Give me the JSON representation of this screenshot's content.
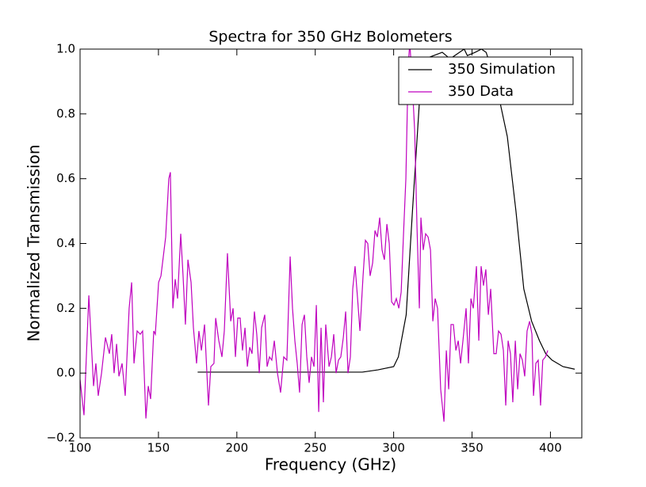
{
  "chart_data": {
    "type": "line",
    "title": "Spectra for 350 GHz Bolometers",
    "x_label": "Frequency (GHz)",
    "y_label": "Normalized Transmission",
    "xlim": [
      100,
      420
    ],
    "ylim": [
      -0.2,
      1.0
    ],
    "xticks": [
      100,
      150,
      200,
      250,
      300,
      350,
      400
    ],
    "yticks": [
      {
        "value": -0.2,
        "label": "−0.2"
      },
      {
        "value": 0,
        "label": "0.0"
      },
      0.2,
      0.4,
      0.6,
      0.8,
      {
        "value": 1.0,
        "label": "1.0"
      }
    ],
    "legend": "upper right",
    "grid": false,
    "series": [
      {
        "name": "350 Simulation",
        "color": "#000000",
        "x": [
          175,
          185,
          200,
          220,
          240,
          260,
          280,
          290,
          300,
          303,
          308,
          312,
          317,
          320,
          331,
          336,
          345,
          347,
          352,
          356,
          359,
          365,
          372.5,
          378,
          383,
          388,
          393,
          397,
          401,
          408,
          415.5
        ],
        "values": [
          0.003,
          0.003,
          0.003,
          0.003,
          0.003,
          0.003,
          0.003,
          0.01,
          0.02,
          0.05,
          0.18,
          0.5,
          0.88,
          0.97,
          0.99,
          0.97,
          1.0,
          0.98,
          0.99,
          1.0,
          0.99,
          0.9,
          0.73,
          0.5,
          0.26,
          0.16,
          0.1,
          0.06,
          0.04,
          0.02,
          0.012
        ]
      },
      {
        "name": "350 Data",
        "color": "#bf00bf",
        "x": [
          100.0,
          102.5,
          105.6,
          108.6,
          110.1,
          111.6,
          113.7,
          116.2,
          118.7,
          120.2,
          121.7,
          123.3,
          124.8,
          126.8,
          128.8,
          131.3,
          132.9,
          134.4,
          136.4,
          138.4,
          139.9,
          142.0,
          143.5,
          145.0,
          147.0,
          148.0,
          150.1,
          151.6,
          153.1,
          154.6,
          156.6,
          157.6,
          159.2,
          160.7,
          162.2,
          164.2,
          165.7,
          167.2,
          168.8,
          170.8,
          172.3,
          174.3,
          175.8,
          177.4,
          179.4,
          181.9,
          183.4,
          185.4,
          186.5,
          188.5,
          190.5,
          192.0,
          194.0,
          196.1,
          197.6,
          199.1,
          200.6,
          202.1,
          203.6,
          205.2,
          206.7,
          208.2,
          209.7,
          211.2,
          212.7,
          214.3,
          215.8,
          217.8,
          219.3,
          220.8,
          222.3,
          223.9,
          225.9,
          227.9,
          229.9,
          231.9,
          234.0,
          235.5,
          237.0,
          238.5,
          240.0,
          241.6,
          243.1,
          244.6,
          246.1,
          247.6,
          249.2,
          250.7,
          252.2,
          253.7,
          255.2,
          256.7,
          258.8,
          260.3,
          261.8,
          263.3,
          264.8,
          266.3,
          267.9,
          269.4,
          270.9,
          272.4,
          273.9,
          275.4,
          277.0,
          278.5,
          280.5,
          282.0,
          283.5,
          285.0,
          286.6,
          288.1,
          289.6,
          291.1,
          292.6,
          294.1,
          295.7,
          297.2,
          298.7,
          300.2,
          301.7,
          303.3,
          304.8,
          306.3,
          307.8,
          309.3,
          310.3,
          311.8,
          313.4,
          314.9,
          316.4,
          317.4,
          318.9,
          320.4,
          322.0,
          323.5,
          325.0,
          326.5,
          328.0,
          330.0,
          332.1,
          333.6,
          335.1,
          336.6,
          338.1,
          339.7,
          341.2,
          342.7,
          344.2,
          346.2,
          347.7,
          349.3,
          350.8,
          352.8,
          354.3,
          355.8,
          357.3,
          358.8,
          360.4,
          361.9,
          363.9,
          365.4,
          366.9,
          368.5,
          370.0,
          371.5,
          373.0,
          374.5,
          376.0,
          377.6,
          379.1,
          380.6,
          382.1,
          383.6,
          385.1,
          386.7,
          388.2,
          389.2,
          390.7,
          392.2,
          393.7,
          395.1,
          396.8,
          398.3
        ],
        "values": [
          -0.02,
          -0.13,
          0.24,
          -0.04,
          0.03,
          -0.07,
          0.0,
          0.11,
          0.06,
          0.12,
          0.0,
          0.09,
          -0.01,
          0.03,
          -0.07,
          0.2,
          0.28,
          0.03,
          0.13,
          0.12,
          0.13,
          -0.14,
          -0.04,
          -0.08,
          0.13,
          0.12,
          0.28,
          0.3,
          0.36,
          0.42,
          0.6,
          0.62,
          0.2,
          0.29,
          0.23,
          0.43,
          0.3,
          0.15,
          0.35,
          0.28,
          0.14,
          0.03,
          0.13,
          0.07,
          0.15,
          -0.1,
          0.02,
          0.03,
          0.17,
          0.1,
          0.05,
          0.13,
          0.37,
          0.16,
          0.2,
          0.05,
          0.17,
          0.17,
          0.07,
          0.14,
          0.02,
          0.08,
          0.06,
          0.19,
          0.12,
          0.0,
          0.14,
          0.18,
          0.02,
          0.05,
          0.04,
          0.1,
          0.0,
          -0.06,
          0.05,
          0.04,
          0.36,
          0.2,
          0.1,
          0.03,
          -0.06,
          0.15,
          0.18,
          0.05,
          -0.03,
          0.05,
          0.02,
          0.21,
          -0.12,
          0.14,
          -0.09,
          0.15,
          0.02,
          0.05,
          0.12,
          0.0,
          0.04,
          0.05,
          0.11,
          0.19,
          0.0,
          0.05,
          0.26,
          0.33,
          0.23,
          0.13,
          0.3,
          0.41,
          0.4,
          0.3,
          0.34,
          0.44,
          0.42,
          0.48,
          0.38,
          0.35,
          0.46,
          0.4,
          0.22,
          0.21,
          0.23,
          0.2,
          0.25,
          0.43,
          0.6,
          0.95,
          1.02,
          0.9,
          0.75,
          0.45,
          0.2,
          0.48,
          0.38,
          0.43,
          0.42,
          0.38,
          0.16,
          0.23,
          0.2,
          -0.05,
          -0.15,
          0.07,
          -0.05,
          0.15,
          0.15,
          0.07,
          0.1,
          0.03,
          0.1,
          0.2,
          0.03,
          0.23,
          0.2,
          0.33,
          0.1,
          0.33,
          0.27,
          0.32,
          0.18,
          0.26,
          0.06,
          0.06,
          0.13,
          0.12,
          0.07,
          -0.1,
          0.1,
          0.06,
          -0.09,
          0.1,
          -0.05,
          0.06,
          0.04,
          -0.01,
          0.13,
          0.16,
          0.12,
          -0.07,
          0.03,
          0.04,
          -0.1,
          0.04,
          0.05,
          0.07
        ]
      }
    ]
  }
}
